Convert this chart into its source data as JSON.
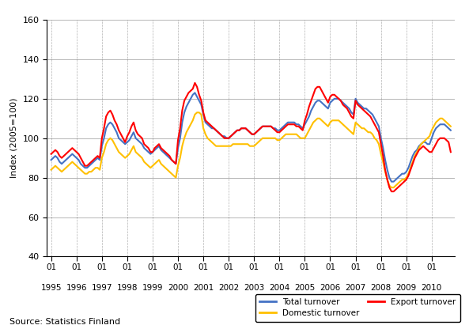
{
  "title": "",
  "ylabel": "Index (2005=100)",
  "source_text": "Source: Statistics Finland",
  "ylim": [
    40,
    160
  ],
  "yticks": [
    40,
    60,
    80,
    100,
    120,
    140,
    160
  ],
  "colors": {
    "total": "#4472C4",
    "domestic": "#FFC000",
    "export": "#FF0000"
  },
  "legend_labels": [
    "Total turnover",
    "Domestic turnover",
    "Export turnover"
  ],
  "total_turnover": [
    89,
    90,
    91,
    90,
    88,
    87,
    88,
    89,
    90,
    91,
    92,
    91,
    90,
    89,
    87,
    86,
    85,
    85,
    86,
    87,
    88,
    89,
    90,
    89,
    96,
    100,
    105,
    107,
    108,
    107,
    105,
    103,
    100,
    99,
    98,
    97,
    98,
    99,
    101,
    103,
    100,
    99,
    98,
    97,
    95,
    94,
    93,
    92,
    93,
    94,
    95,
    96,
    94,
    93,
    92,
    91,
    90,
    89,
    88,
    87,
    95,
    100,
    108,
    113,
    116,
    118,
    120,
    122,
    123,
    121,
    119,
    117,
    112,
    108,
    107,
    106,
    105,
    105,
    104,
    103,
    102,
    101,
    101,
    100,
    100,
    101,
    102,
    103,
    104,
    104,
    105,
    105,
    105,
    104,
    103,
    102,
    102,
    103,
    104,
    105,
    106,
    106,
    106,
    106,
    106,
    105,
    105,
    104,
    104,
    105,
    106,
    107,
    108,
    108,
    108,
    108,
    107,
    107,
    106,
    105,
    107,
    109,
    111,
    114,
    116,
    118,
    119,
    119,
    118,
    117,
    116,
    115,
    118,
    119,
    120,
    120,
    120,
    119,
    118,
    117,
    116,
    115,
    113,
    112,
    120,
    118,
    117,
    116,
    115,
    115,
    114,
    113,
    112,
    110,
    108,
    106,
    100,
    95,
    89,
    84,
    80,
    78,
    78,
    79,
    80,
    81,
    82,
    82,
    83,
    85,
    88,
    91,
    93,
    94,
    96,
    97,
    98,
    98,
    97,
    97,
    100,
    103,
    105,
    106,
    107,
    107,
    107,
    106,
    105,
    104
  ],
  "domestic_turnover": [
    84,
    85,
    86,
    85,
    84,
    83,
    84,
    85,
    86,
    87,
    88,
    87,
    86,
    85,
    84,
    83,
    82,
    82,
    83,
    83,
    84,
    85,
    85,
    84,
    90,
    93,
    97,
    99,
    100,
    99,
    97,
    95,
    93,
    92,
    91,
    90,
    91,
    92,
    94,
    96,
    93,
    92,
    91,
    90,
    88,
    87,
    86,
    85,
    86,
    87,
    88,
    89,
    87,
    86,
    85,
    84,
    83,
    82,
    81,
    80,
    86,
    90,
    96,
    100,
    103,
    105,
    107,
    109,
    112,
    113,
    113,
    112,
    105,
    102,
    100,
    99,
    98,
    97,
    96,
    96,
    96,
    96,
    96,
    96,
    96,
    96,
    97,
    97,
    97,
    97,
    97,
    97,
    97,
    97,
    96,
    96,
    96,
    97,
    98,
    99,
    100,
    100,
    100,
    100,
    100,
    100,
    100,
    99,
    99,
    100,
    101,
    102,
    102,
    102,
    102,
    102,
    102,
    101,
    100,
    100,
    100,
    102,
    104,
    106,
    108,
    109,
    110,
    110,
    109,
    108,
    107,
    106,
    108,
    109,
    109,
    109,
    109,
    108,
    107,
    106,
    105,
    104,
    103,
    102,
    108,
    107,
    106,
    105,
    105,
    104,
    103,
    103,
    102,
    100,
    99,
    97,
    92,
    88,
    83,
    79,
    76,
    75,
    75,
    76,
    77,
    78,
    79,
    79,
    80,
    82,
    85,
    88,
    91,
    93,
    95,
    97,
    98,
    99,
    100,
    101,
    104,
    106,
    108,
    109,
    110,
    110,
    109,
    108,
    107,
    106
  ],
  "export_turnover": [
    92,
    93,
    94,
    93,
    91,
    90,
    91,
    92,
    93,
    94,
    95,
    94,
    93,
    92,
    90,
    88,
    86,
    86,
    87,
    88,
    89,
    90,
    91,
    90,
    100,
    105,
    111,
    113,
    114,
    112,
    109,
    107,
    104,
    102,
    100,
    98,
    101,
    103,
    106,
    108,
    104,
    102,
    101,
    100,
    97,
    96,
    95,
    93,
    93,
    95,
    96,
    97,
    95,
    94,
    93,
    92,
    91,
    89,
    88,
    87,
    99,
    105,
    114,
    119,
    121,
    123,
    124,
    125,
    128,
    126,
    122,
    119,
    113,
    109,
    108,
    107,
    106,
    105,
    104,
    103,
    102,
    101,
    100,
    100,
    100,
    101,
    102,
    103,
    104,
    104,
    105,
    105,
    105,
    104,
    103,
    102,
    102,
    103,
    104,
    105,
    106,
    106,
    106,
    106,
    106,
    105,
    104,
    103,
    103,
    104,
    105,
    106,
    107,
    107,
    107,
    107,
    106,
    106,
    105,
    104,
    109,
    112,
    116,
    119,
    122,
    125,
    126,
    126,
    124,
    122,
    120,
    118,
    121,
    122,
    122,
    121,
    120,
    119,
    117,
    116,
    115,
    113,
    111,
    110,
    119,
    117,
    116,
    115,
    114,
    113,
    112,
    111,
    109,
    107,
    105,
    103,
    97,
    91,
    84,
    79,
    75,
    73,
    73,
    74,
    75,
    76,
    77,
    78,
    79,
    81,
    84,
    87,
    90,
    92,
    94,
    95,
    96,
    95,
    94,
    93,
    93,
    95,
    97,
    99,
    100,
    100,
    100,
    99,
    98,
    93
  ]
}
